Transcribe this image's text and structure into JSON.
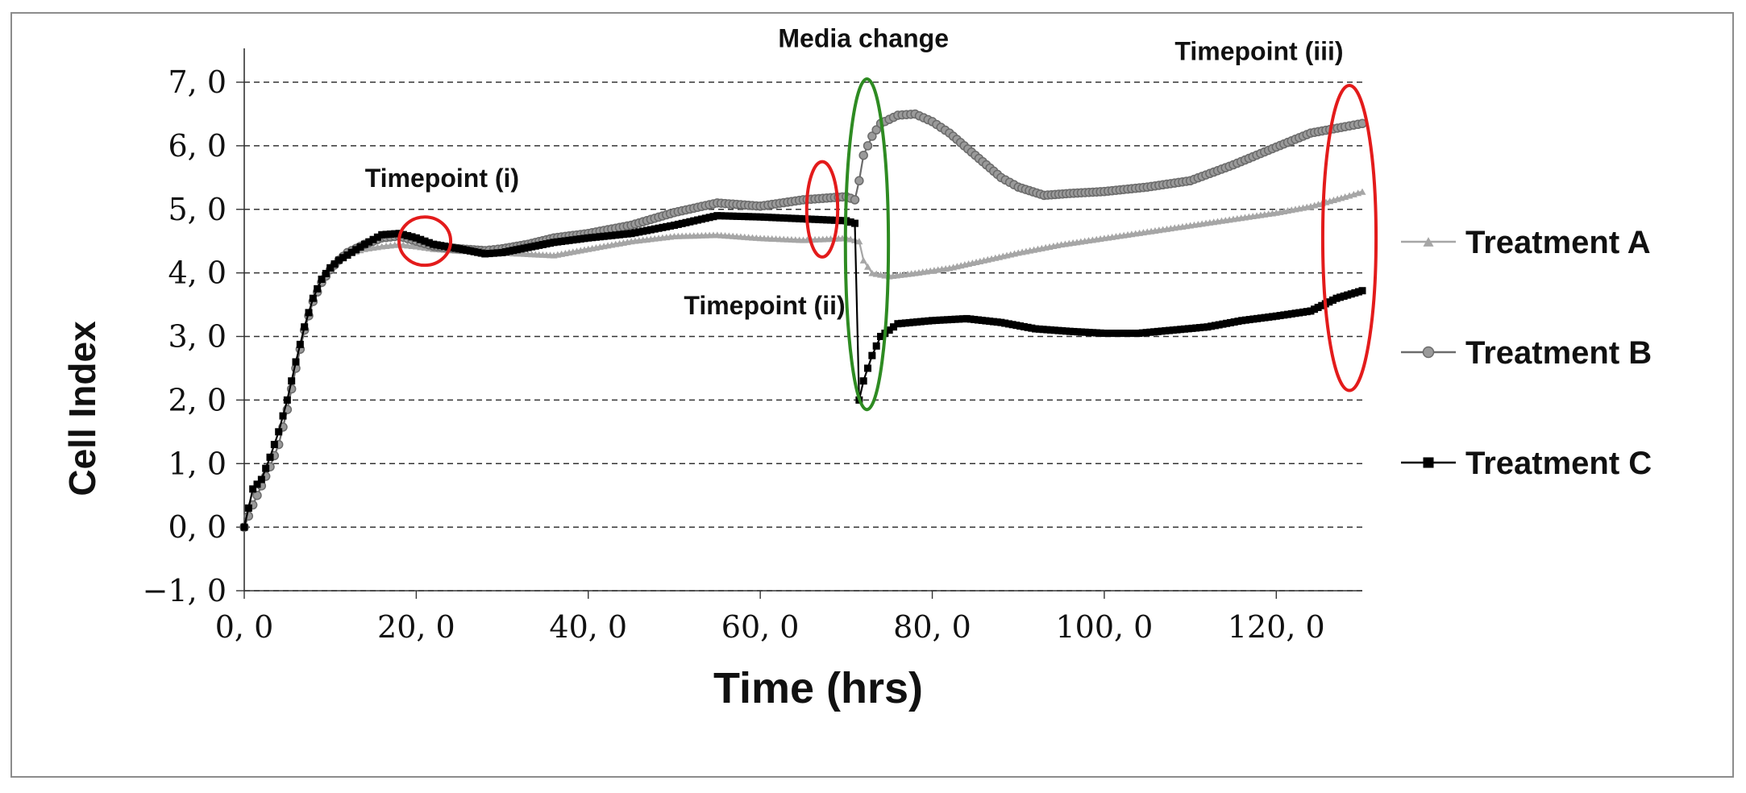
{
  "chart_data": {
    "type": "line",
    "title": "",
    "xlabel": "Time (hrs)",
    "ylabel": "Cell Index",
    "xlim": [
      0,
      130
    ],
    "ylim": [
      -1,
      7
    ],
    "x_ticks": [
      0,
      20,
      40,
      60,
      80,
      100,
      120
    ],
    "x_tick_labels": [
      "0, 0",
      "20, 0",
      "40, 0",
      "60, 0",
      "80, 0",
      "100, 0",
      "120, 0"
    ],
    "y_ticks": [
      -1,
      0,
      1,
      2,
      3,
      4,
      5,
      6,
      7
    ],
    "y_tick_labels": [
      "−1, 0",
      "0, 0",
      "1, 0",
      "2, 0",
      "3, 0",
      "4, 0",
      "5, 0",
      "6, 0",
      "7, 0"
    ],
    "grid": "horizontal dashed",
    "legend_position": "right",
    "series": [
      {
        "name": "Treatment A",
        "color": "#a6a6a6",
        "marker": "triangle",
        "x": [
          0,
          1,
          2,
          3,
          4,
          5,
          6,
          7,
          8,
          9,
          10,
          11,
          12,
          14,
          16,
          18,
          20,
          22,
          25,
          28,
          30,
          33,
          36,
          40,
          45,
          50,
          55,
          60,
          65,
          70,
          71.5,
          72,
          73,
          75,
          78,
          82,
          86,
          90,
          95,
          100,
          105,
          110,
          115,
          120,
          124,
          128,
          130
        ],
        "y": [
          0,
          0.35,
          0.65,
          0.95,
          1.3,
          1.85,
          2.5,
          3.1,
          3.55,
          3.85,
          4.05,
          4.2,
          4.3,
          4.38,
          4.42,
          4.45,
          4.42,
          4.38,
          4.35,
          4.33,
          4.32,
          4.3,
          4.28,
          4.38,
          4.5,
          4.58,
          4.6,
          4.55,
          4.52,
          4.55,
          4.5,
          4.2,
          4.0,
          3.95,
          4.0,
          4.08,
          4.2,
          4.32,
          4.45,
          4.55,
          4.65,
          4.75,
          4.85,
          4.95,
          5.05,
          5.2,
          5.28
        ]
      },
      {
        "name": "Treatment B",
        "color": "#6b6b6b",
        "marker": "circle",
        "x": [
          0,
          1,
          2,
          3,
          4,
          5,
          6,
          7,
          8,
          9,
          10,
          11,
          12,
          14,
          16,
          18,
          20,
          22,
          25,
          28,
          30,
          33,
          36,
          40,
          45,
          50,
          55,
          60,
          65,
          70,
          71,
          71.5,
          72,
          73,
          74,
          76,
          78,
          80,
          82,
          85,
          88,
          90,
          93,
          96,
          100,
          105,
          110,
          115,
          120,
          124,
          128,
          130
        ],
        "y": [
          0,
          0.35,
          0.65,
          0.95,
          1.3,
          1.85,
          2.5,
          3.1,
          3.55,
          3.85,
          4.05,
          4.2,
          4.32,
          4.45,
          4.55,
          4.58,
          4.5,
          4.42,
          4.38,
          4.35,
          4.38,
          4.45,
          4.55,
          4.62,
          4.75,
          4.95,
          5.1,
          5.05,
          5.15,
          5.2,
          5.15,
          5.45,
          5.85,
          6.15,
          6.35,
          6.48,
          6.5,
          6.38,
          6.2,
          5.85,
          5.5,
          5.35,
          5.22,
          5.25,
          5.28,
          5.35,
          5.45,
          5.7,
          5.98,
          6.2,
          6.3,
          6.35
        ]
      },
      {
        "name": "Treatment C",
        "color": "#000000",
        "marker": "square",
        "x": [
          0,
          1,
          2,
          3,
          4,
          5,
          6,
          7,
          8,
          9,
          10,
          11,
          12,
          14,
          16,
          18,
          20,
          22,
          25,
          28,
          30,
          33,
          36,
          40,
          45,
          50,
          55,
          60,
          65,
          70,
          71,
          71.5,
          72,
          73,
          74,
          76,
          80,
          84,
          88,
          92,
          96,
          100,
          104,
          108,
          112,
          116,
          120,
          124,
          127,
          130
        ],
        "y": [
          0,
          0.6,
          0.75,
          1.1,
          1.5,
          2.0,
          2.6,
          3.15,
          3.6,
          3.9,
          4.08,
          4.2,
          4.28,
          4.45,
          4.6,
          4.62,
          4.55,
          4.45,
          4.38,
          4.3,
          4.32,
          4.4,
          4.48,
          4.55,
          4.62,
          4.75,
          4.9,
          4.88,
          4.85,
          4.82,
          4.78,
          2.0,
          2.3,
          2.7,
          3.0,
          3.2,
          3.25,
          3.28,
          3.22,
          3.12,
          3.08,
          3.05,
          3.05,
          3.1,
          3.15,
          3.25,
          3.32,
          3.4,
          3.6,
          3.72
        ]
      }
    ],
    "annotations": [
      {
        "text": "Media change",
        "x": 72,
        "y": 7.55
      },
      {
        "text": "Timepoint (i)",
        "x": 23,
        "y": 5.35
      },
      {
        "text": "Timepoint (ii)",
        "x": 60.5,
        "y": 3.35
      },
      {
        "text": "Timepoint (iii)",
        "x": 118,
        "y": 7.35
      }
    ],
    "highlight_ellipses": [
      {
        "label": "timepoint-i-marker",
        "cx": 21,
        "cy": 4.5,
        "rx": 3,
        "ry": 0.38,
        "color": "#e31b1b"
      },
      {
        "label": "timepoint-ii-marker",
        "cx": 67.2,
        "cy": 5.0,
        "rx": 1.8,
        "ry": 0.75,
        "color": "#e31b1b"
      },
      {
        "label": "timepoint-iii-marker",
        "cx": 128.5,
        "cy": 4.55,
        "rx": 3.1,
        "ry": 2.4,
        "color": "#e31b1b"
      },
      {
        "label": "media-change-marker",
        "cx": 72.4,
        "cy": 4.45,
        "rx": 2.5,
        "ry": 2.6,
        "color": "#2e8b22"
      }
    ]
  }
}
